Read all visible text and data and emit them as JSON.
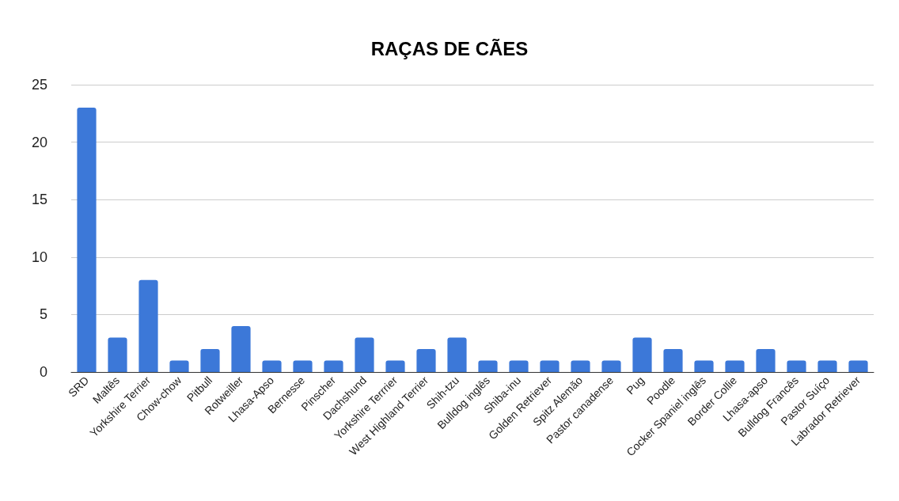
{
  "chart_data": {
    "type": "bar",
    "title": "RAÇAS DE CÃES",
    "categories": [
      "SRD",
      "Maltês",
      "Yorkshire Terrier",
      "Chow-chow",
      "Pitbull",
      "Rotweiller",
      "Lhasa-Apso",
      "Bernesse",
      "Pinscher",
      "Dachshund",
      "Yorkshire Terrrier",
      "West Highland Terrier",
      "Shih-tzu",
      "Bulldog inglês",
      "Shiba-inu",
      "Golden Retriever",
      "Spitz Alemão",
      "Pastor canadense",
      "Pug",
      "Poodle",
      "Cocker Spaniel inglês",
      "Border Collie",
      "Lhasa-apso",
      "Bulldog Francês",
      "Pastor Suíço",
      "Labrador Retriever"
    ],
    "values": [
      23,
      3,
      8,
      1,
      2,
      4,
      1,
      1,
      1,
      3,
      1,
      2,
      3,
      1,
      1,
      1,
      1,
      1,
      3,
      2,
      1,
      1,
      2,
      1,
      1,
      1
    ],
    "color": "#3c78d8",
    "ylim": [
      0,
      25
    ],
    "yticks": [
      0,
      5,
      10,
      15,
      20,
      25
    ],
    "grid": "y"
  }
}
